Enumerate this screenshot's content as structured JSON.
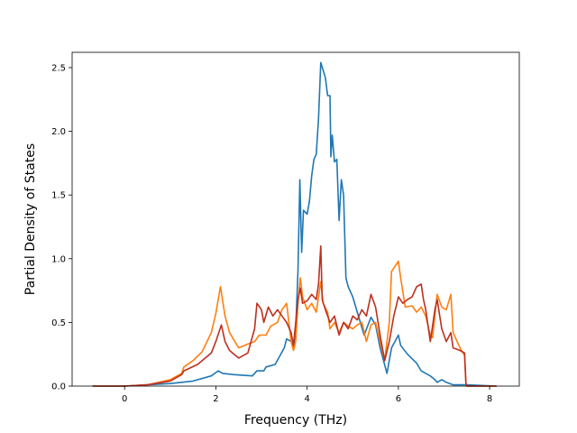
{
  "chart_data": {
    "type": "line",
    "title": "",
    "xlabel": "Frequency (THz)",
    "ylabel": "Partial Density of States",
    "xlim": [
      -1.15,
      8.65
    ],
    "ylim": [
      0.0,
      2.62
    ],
    "xticks": [
      0,
      2,
      4,
      6,
      8
    ],
    "xtick_labels": [
      "0",
      "2",
      "4",
      "6",
      "8"
    ],
    "yticks": [
      0.0,
      0.5,
      1.0,
      1.5,
      2.0,
      2.5
    ],
    "ytick_labels": [
      "0.0",
      "0.5",
      "1.0",
      "1.5",
      "2.0",
      "2.5"
    ],
    "grid": false,
    "legend": "none",
    "series": [
      {
        "color": "#1f77b4",
        "points": [
          [
            -0.7,
            0
          ],
          [
            0,
            0
          ],
          [
            0.5,
            0.01
          ],
          [
            1.0,
            0.02
          ],
          [
            1.5,
            0.04
          ],
          [
            1.9,
            0.08
          ],
          [
            2.05,
            0.12
          ],
          [
            2.15,
            0.1
          ],
          [
            2.4,
            0.09
          ],
          [
            2.8,
            0.08
          ],
          [
            2.9,
            0.12
          ],
          [
            3.05,
            0.12
          ],
          [
            3.1,
            0.15
          ],
          [
            3.3,
            0.17
          ],
          [
            3.5,
            0.3
          ],
          [
            3.55,
            0.37
          ],
          [
            3.65,
            0.35
          ],
          [
            3.7,
            0.3
          ],
          [
            3.75,
            0.45
          ],
          [
            3.8,
            0.9
          ],
          [
            3.84,
            1.62
          ],
          [
            3.88,
            1.05
          ],
          [
            3.92,
            1.38
          ],
          [
            4.0,
            1.35
          ],
          [
            4.05,
            1.45
          ],
          [
            4.1,
            1.65
          ],
          [
            4.15,
            1.78
          ],
          [
            4.2,
            1.82
          ],
          [
            4.25,
            2.1
          ],
          [
            4.3,
            2.54
          ],
          [
            4.35,
            2.48
          ],
          [
            4.4,
            2.42
          ],
          [
            4.45,
            2.28
          ],
          [
            4.5,
            2.28
          ],
          [
            4.52,
            1.8
          ],
          [
            4.55,
            1.97
          ],
          [
            4.6,
            1.76
          ],
          [
            4.65,
            1.78
          ],
          [
            4.7,
            1.3
          ],
          [
            4.75,
            1.62
          ],
          [
            4.8,
            1.5
          ],
          [
            4.85,
            0.85
          ],
          [
            4.9,
            0.78
          ],
          [
            5.0,
            0.7
          ],
          [
            5.1,
            0.58
          ],
          [
            5.25,
            0.4
          ],
          [
            5.4,
            0.54
          ],
          [
            5.5,
            0.48
          ],
          [
            5.6,
            0.3
          ],
          [
            5.75,
            0.1
          ],
          [
            5.85,
            0.3
          ],
          [
            6.0,
            0.4
          ],
          [
            6.05,
            0.32
          ],
          [
            6.2,
            0.25
          ],
          [
            6.4,
            0.18
          ],
          [
            6.5,
            0.12
          ],
          [
            6.6,
            0.1
          ],
          [
            6.7,
            0.08
          ],
          [
            6.8,
            0.05
          ],
          [
            6.85,
            0.03
          ],
          [
            6.95,
            0.05
          ],
          [
            7.05,
            0.03
          ],
          [
            7.2,
            0.01
          ],
          [
            7.5,
            0.01
          ],
          [
            8.15,
            0
          ]
        ]
      },
      {
        "color": "#ff7f0e",
        "points": [
          [
            -0.7,
            0
          ],
          [
            0,
            0
          ],
          [
            0.5,
            0.01
          ],
          [
            1.0,
            0.05
          ],
          [
            1.25,
            0.1
          ],
          [
            1.3,
            0.15
          ],
          [
            1.5,
            0.2
          ],
          [
            1.7,
            0.27
          ],
          [
            1.9,
            0.42
          ],
          [
            2.0,
            0.57
          ],
          [
            2.1,
            0.78
          ],
          [
            2.2,
            0.55
          ],
          [
            2.3,
            0.42
          ],
          [
            2.5,
            0.3
          ],
          [
            2.7,
            0.33
          ],
          [
            2.85,
            0.35
          ],
          [
            2.95,
            0.4
          ],
          [
            3.1,
            0.4
          ],
          [
            3.2,
            0.47
          ],
          [
            3.35,
            0.5
          ],
          [
            3.45,
            0.6
          ],
          [
            3.55,
            0.65
          ],
          [
            3.65,
            0.35
          ],
          [
            3.7,
            0.28
          ],
          [
            3.75,
            0.35
          ],
          [
            3.8,
            0.65
          ],
          [
            3.85,
            0.85
          ],
          [
            3.9,
            0.7
          ],
          [
            4.0,
            0.6
          ],
          [
            4.1,
            0.65
          ],
          [
            4.2,
            0.58
          ],
          [
            4.3,
            0.82
          ],
          [
            4.35,
            0.65
          ],
          [
            4.45,
            0.58
          ],
          [
            4.5,
            0.45
          ],
          [
            4.6,
            0.5
          ],
          [
            4.7,
            0.42
          ],
          [
            4.8,
            0.5
          ],
          [
            4.9,
            0.47
          ],
          [
            5.0,
            0.45
          ],
          [
            5.1,
            0.48
          ],
          [
            5.2,
            0.5
          ],
          [
            5.3,
            0.35
          ],
          [
            5.4,
            0.48
          ],
          [
            5.5,
            0.5
          ],
          [
            5.6,
            0.35
          ],
          [
            5.7,
            0.2
          ],
          [
            5.8,
            0.5
          ],
          [
            5.85,
            0.9
          ],
          [
            6.0,
            0.98
          ],
          [
            6.05,
            0.85
          ],
          [
            6.15,
            0.62
          ],
          [
            6.3,
            0.63
          ],
          [
            6.4,
            0.58
          ],
          [
            6.5,
            0.62
          ],
          [
            6.6,
            0.55
          ],
          [
            6.7,
            0.4
          ],
          [
            6.75,
            0.38
          ],
          [
            6.85,
            0.72
          ],
          [
            6.95,
            0.62
          ],
          [
            7.05,
            0.6
          ],
          [
            7.15,
            0.72
          ],
          [
            7.2,
            0.42
          ],
          [
            7.35,
            0.3
          ],
          [
            7.45,
            0.24
          ],
          [
            7.48,
            0.02
          ],
          [
            7.5,
            0
          ],
          [
            8.15,
            0
          ]
        ]
      },
      {
        "color": "#bd3020",
        "points": [
          [
            -0.7,
            0
          ],
          [
            0,
            0
          ],
          [
            0.5,
            0.01
          ],
          [
            1.0,
            0.04
          ],
          [
            1.25,
            0.09
          ],
          [
            1.3,
            0.12
          ],
          [
            1.6,
            0.17
          ],
          [
            1.9,
            0.26
          ],
          [
            2.0,
            0.35
          ],
          [
            2.12,
            0.48
          ],
          [
            2.2,
            0.35
          ],
          [
            2.3,
            0.28
          ],
          [
            2.5,
            0.22
          ],
          [
            2.7,
            0.26
          ],
          [
            2.85,
            0.45
          ],
          [
            2.9,
            0.65
          ],
          [
            3.0,
            0.6
          ],
          [
            3.05,
            0.5
          ],
          [
            3.15,
            0.62
          ],
          [
            3.25,
            0.55
          ],
          [
            3.35,
            0.6
          ],
          [
            3.45,
            0.55
          ],
          [
            3.55,
            0.5
          ],
          [
            3.65,
            0.42
          ],
          [
            3.7,
            0.32
          ],
          [
            3.8,
            0.68
          ],
          [
            3.85,
            0.77
          ],
          [
            3.9,
            0.65
          ],
          [
            4.0,
            0.67
          ],
          [
            4.1,
            0.72
          ],
          [
            4.2,
            0.68
          ],
          [
            4.25,
            0.8
          ],
          [
            4.3,
            1.1
          ],
          [
            4.33,
            0.68
          ],
          [
            4.4,
            0.6
          ],
          [
            4.5,
            0.5
          ],
          [
            4.6,
            0.55
          ],
          [
            4.7,
            0.4
          ],
          [
            4.8,
            0.5
          ],
          [
            4.9,
            0.45
          ],
          [
            5.0,
            0.55
          ],
          [
            5.1,
            0.52
          ],
          [
            5.2,
            0.6
          ],
          [
            5.3,
            0.55
          ],
          [
            5.4,
            0.72
          ],
          [
            5.5,
            0.62
          ],
          [
            5.6,
            0.4
          ],
          [
            5.7,
            0.2
          ],
          [
            5.8,
            0.35
          ],
          [
            5.9,
            0.55
          ],
          [
            6.0,
            0.7
          ],
          [
            6.1,
            0.65
          ],
          [
            6.2,
            0.68
          ],
          [
            6.3,
            0.7
          ],
          [
            6.4,
            0.78
          ],
          [
            6.5,
            0.8
          ],
          [
            6.55,
            0.68
          ],
          [
            6.6,
            0.6
          ],
          [
            6.7,
            0.35
          ],
          [
            6.8,
            0.6
          ],
          [
            6.85,
            0.68
          ],
          [
            6.95,
            0.45
          ],
          [
            7.05,
            0.35
          ],
          [
            7.15,
            0.42
          ],
          [
            7.2,
            0.3
          ],
          [
            7.35,
            0.28
          ],
          [
            7.45,
            0.26
          ],
          [
            7.48,
            0.02
          ],
          [
            7.5,
            0
          ],
          [
            8.15,
            0
          ]
        ]
      }
    ]
  }
}
